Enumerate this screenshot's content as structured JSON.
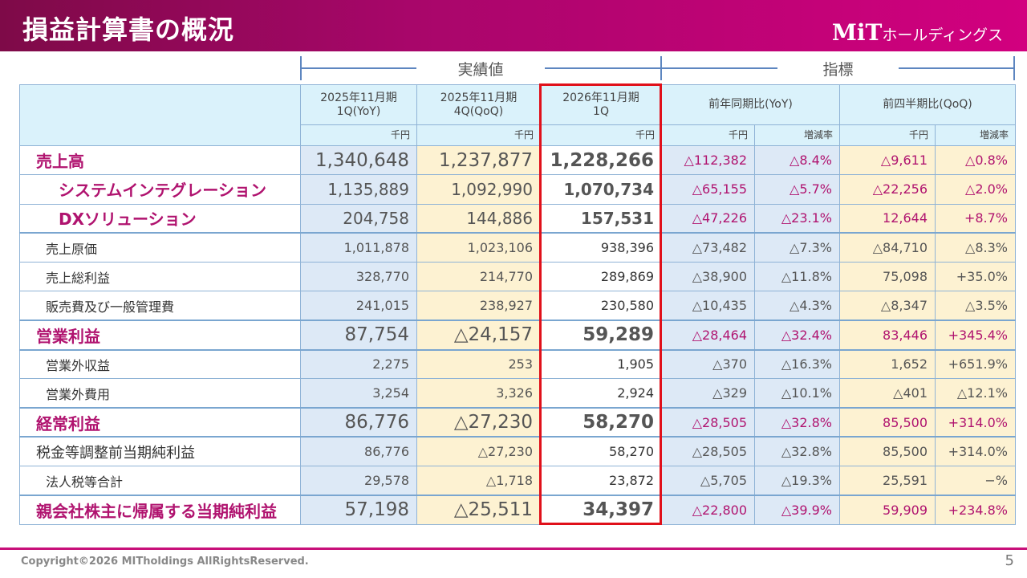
{
  "header": {
    "title": "損益計算書の概況",
    "logo_mark": "MiT",
    "logo_text": "ホールディングス"
  },
  "groups": {
    "actual": "実績値",
    "indicator": "指標"
  },
  "columns": {
    "c1": "2025年11月期\n1Q(YoY)",
    "c2": "2025年11月期\n4Q(QoQ)",
    "c3": "2026年11月期\n1Q",
    "yoy": "前年同期比(YoY)",
    "qoq": "前四半期比(QoQ)",
    "unit": "千円",
    "rate": "増減率"
  },
  "rows": [
    {
      "label": "売上高",
      "type": "major",
      "v": [
        "1,340,648",
        "1,237,877",
        "1,228,266",
        "△112,382",
        "△8.4%",
        "△9,611",
        "△0.8%"
      ]
    },
    {
      "label": "システムインテグレーション",
      "type": "sub",
      "v": [
        "1,135,889",
        "1,092,990",
        "1,070,734",
        "△65,155",
        "△5.7%",
        "△22,256",
        "△2.0%"
      ]
    },
    {
      "label": "DXソリューション",
      "type": "sub",
      "gb": true,
      "v": [
        "204,758",
        "144,886",
        "157,531",
        "△47,226",
        "△23.1%",
        "12,644",
        "+8.7%"
      ]
    },
    {
      "label": "売上原価",
      "type": "norm",
      "v": [
        "1,011,878",
        "1,023,106",
        "938,396",
        "△73,482",
        "△7.3%",
        "△84,710",
        "△8.3%"
      ]
    },
    {
      "label": "売上総利益",
      "type": "norm",
      "v": [
        "328,770",
        "214,770",
        "289,869",
        "△38,900",
        "△11.8%",
        "75,098",
        "+35.0%"
      ]
    },
    {
      "label": "販売費及び一般管理費",
      "type": "norm",
      "gb": true,
      "v": [
        "241,015",
        "238,927",
        "230,580",
        "△10,435",
        "△4.3%",
        "△8,347",
        "△3.5%"
      ]
    },
    {
      "label": "営業利益",
      "type": "major",
      "gb": true,
      "v": [
        "87,754",
        "△24,157",
        "59,289",
        "△28,464",
        "△32.4%",
        "83,446",
        "+345.4%"
      ]
    },
    {
      "label": "営業外収益",
      "type": "norm",
      "v": [
        "2,275",
        "253",
        "1,905",
        "△370",
        "△16.3%",
        "1,652",
        "+651.9%"
      ]
    },
    {
      "label": "営業外費用",
      "type": "norm",
      "gb": true,
      "v": [
        "3,254",
        "3,326",
        "2,924",
        "△329",
        "△10.1%",
        "△401",
        "△12.1%"
      ]
    },
    {
      "label": "経常利益",
      "type": "major",
      "gb": true,
      "v": [
        "86,776",
        "△27,230",
        "58,270",
        "△28,505",
        "△32.8%",
        "85,500",
        "+314.0%"
      ]
    },
    {
      "label": "税金等調整前当期純利益",
      "type": "mid",
      "v": [
        "86,776",
        "△27,230",
        "58,270",
        "△28,505",
        "△32.8%",
        "85,500",
        "+314.0%"
      ]
    },
    {
      "label": "法人税等合計",
      "type": "norm",
      "gb": true,
      "v": [
        "29,578",
        "△1,718",
        "23,872",
        "△5,705",
        "△19.3%",
        "25,591",
        "−%"
      ]
    },
    {
      "label": "親会社株主に帰属する当期純利益",
      "type": "major",
      "v": [
        "57,198",
        "△25,511",
        "34,397",
        "△22,800",
        "△39.9%",
        "59,909",
        "+234.8%"
      ]
    }
  ],
  "footer": {
    "copyright": "Copyright©2026 MITholdings AllRightsReserved.",
    "page": "5"
  },
  "colors": {
    "brand": "#c8107a",
    "highlight_border": "#e0101a",
    "negative_text": "#b0136f"
  }
}
